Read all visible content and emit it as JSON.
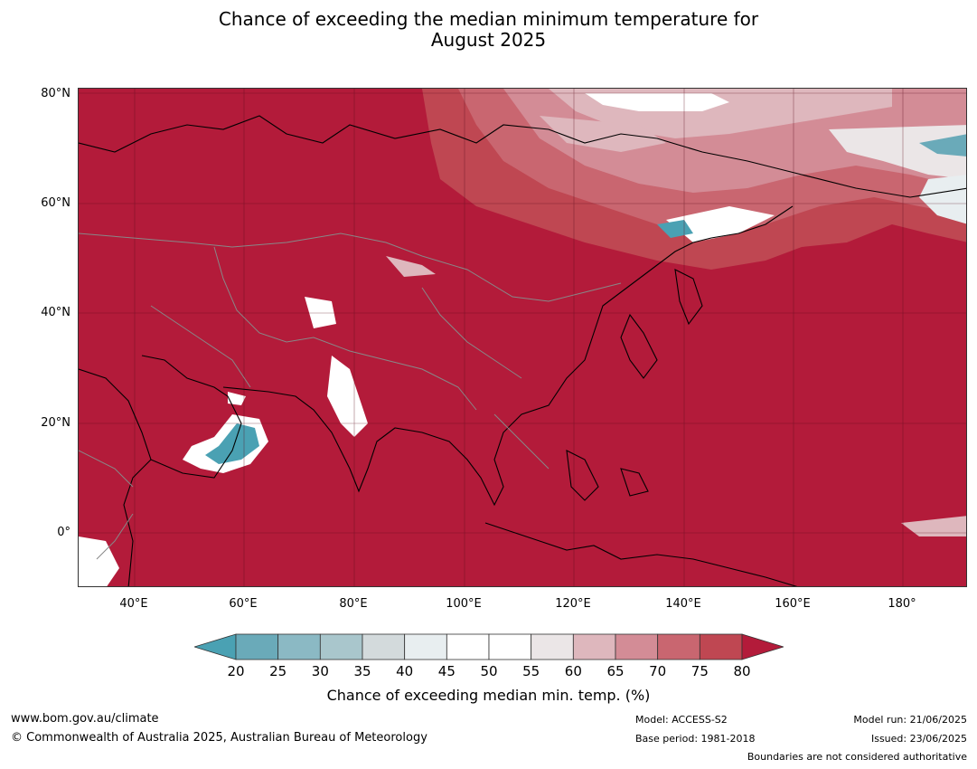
{
  "title_line1": "Chance of exceeding the median minimum temperature for",
  "title_line2": "August 2025",
  "lat_labels": [
    "80°N",
    "60°N",
    "40°N",
    "20°N",
    "0°"
  ],
  "lon_labels": [
    "40°E",
    "60°E",
    "80°E",
    "100°E",
    "120°E",
    "140°E",
    "160°E",
    "180°"
  ],
  "colorbar": {
    "ticks": [
      "20",
      "25",
      "30",
      "35",
      "40",
      "45",
      "50",
      "55",
      "60",
      "65",
      "70",
      "75",
      "80"
    ],
    "label": "Chance of exceeding median min. temp. (%)",
    "colors": [
      "#4aa1b3",
      "#6aaab9",
      "#8bb9c4",
      "#a9c6cc",
      "#d3dadc",
      "#e8eef0",
      "#ffffff",
      "#ffffff",
      "#ebe6e7",
      "#deb7bd",
      "#d38c96",
      "#c96670",
      "#bf4752",
      "#b31b3a"
    ]
  },
  "footer": {
    "url": "www.bom.gov.au/climate",
    "copyright": "© Commonwealth of Australia 2025, Australian Bureau of Meteorology",
    "model": "Model: ACCESS-S2",
    "base_period": "Base period: 1981-2018",
    "model_run": "Model run: 21/06/2025",
    "issued": "Issued: 23/06/2025",
    "boundaries": "Boundaries are not considered authoritative"
  }
}
